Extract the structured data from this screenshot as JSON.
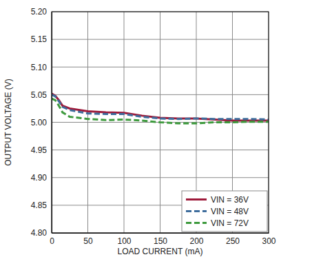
{
  "chart_data": {
    "type": "line",
    "x_label": "LOAD CURRENT (mA)",
    "y_label": "OUTPUT VOLTAGE (V)",
    "x": [
      0,
      5,
      10,
      15,
      25,
      50,
      75,
      100,
      125,
      150,
      175,
      200,
      225,
      250,
      275,
      300
    ],
    "series": [
      {
        "name": "VIN = 36V",
        "color": "#9e1a3a",
        "line_style": "solid",
        "values": [
          5.052,
          5.048,
          5.04,
          5.03,
          5.025,
          5.02,
          5.018,
          5.017,
          5.012,
          5.008,
          5.007,
          5.007,
          5.005,
          5.003,
          5.003,
          5.003
        ]
      },
      {
        "name": "VIN = 48V",
        "color": "#3e6d9c",
        "line_style": "dashed",
        "values": [
          5.05,
          5.047,
          5.038,
          5.028,
          5.022,
          5.016,
          5.015,
          5.015,
          5.01,
          5.007,
          5.006,
          5.007,
          5.006,
          5.006,
          5.006,
          5.005
        ]
      },
      {
        "name": "VIN = 72V",
        "color": "#3d9a3d",
        "line_style": "dashed",
        "values": [
          5.043,
          5.04,
          5.03,
          5.018,
          5.01,
          5.006,
          5.004,
          5.005,
          5.003,
          5.0,
          4.998,
          4.998,
          5.0,
          5.0,
          5.001,
          5.001
        ]
      }
    ],
    "xlim": [
      0,
      300
    ],
    "xticks": [
      0,
      50,
      100,
      150,
      200,
      250,
      300
    ],
    "ylim": [
      4.8,
      5.2
    ],
    "yticks": [
      {
        "value": 4.8,
        "label": "4.80"
      },
      4.85,
      {
        "value": 4.9,
        "label": "4.90"
      },
      4.95,
      {
        "value": 5.0,
        "label": "5.00"
      },
      5.05,
      {
        "value": 5.1,
        "label": "5.10"
      },
      5.15,
      {
        "value": 5.2,
        "label": "5.20"
      }
    ],
    "grid": true,
    "legend": "lower right"
  }
}
